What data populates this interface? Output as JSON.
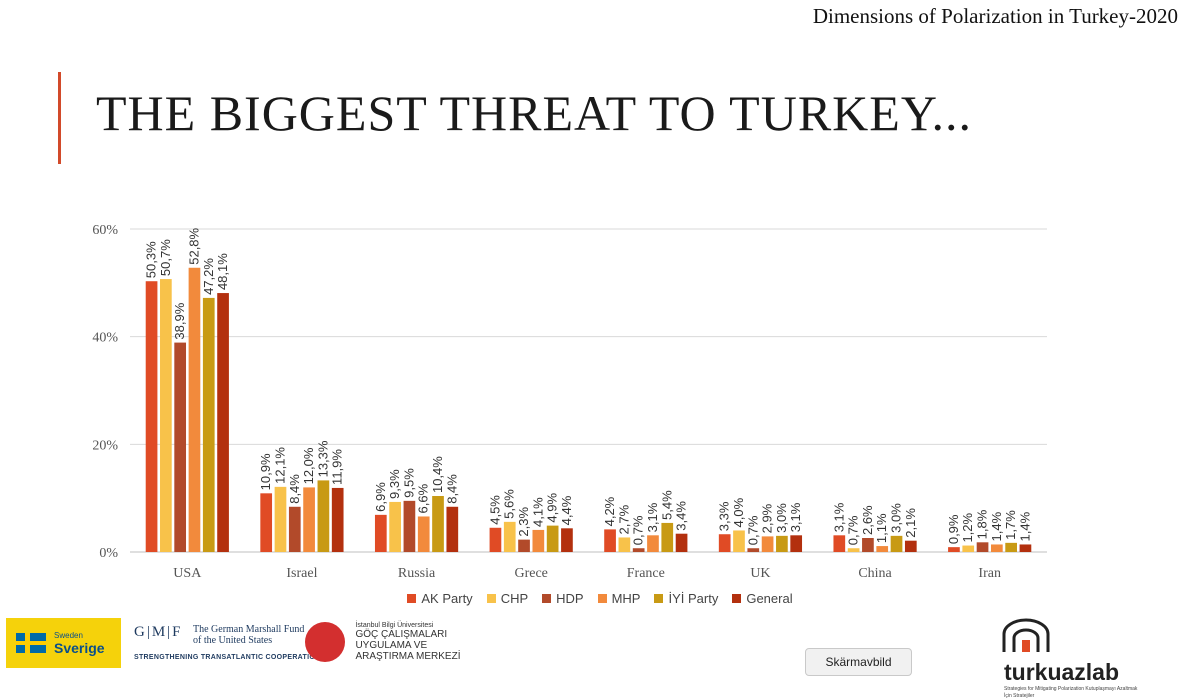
{
  "header": {
    "title": "Dimensions of Polarization in Turkey-2020"
  },
  "slide": {
    "title": "THE BIGGEST THREAT TO TURKEY..."
  },
  "colors": {
    "AK Party": "#e04b25",
    "CHP": "#f8c24a",
    "HDP": "#b24a2a",
    "MHP": "#f28a3c",
    "IYI": "#c89a14",
    "General": "#b3300e",
    "accent": "#d24a2a"
  },
  "chart_data": {
    "type": "bar",
    "title": "",
    "categories": [
      "USA",
      "Israel",
      "Russia",
      "Grece",
      "France",
      "UK",
      "China",
      "Iran"
    ],
    "series": [
      {
        "name": "AK Party",
        "values": [
          50.3,
          10.9,
          6.9,
          4.5,
          4.2,
          3.3,
          3.1,
          0.9
        ],
        "labels": [
          "50,3%",
          "10,9%",
          "6,9%",
          "4,5%",
          "4,2%",
          "3,3%",
          "3,1%",
          "0,9%"
        ]
      },
      {
        "name": "CHP",
        "values": [
          50.7,
          12.1,
          9.3,
          5.6,
          2.7,
          4.0,
          0.7,
          1.2
        ],
        "labels": [
          "50,7%",
          "12,1%",
          "9,3%",
          "5,6%",
          "2,7%",
          "4,0%",
          "0,7%",
          "1,2%"
        ]
      },
      {
        "name": "HDP",
        "values": [
          38.9,
          8.4,
          9.5,
          2.3,
          0.7,
          0.7,
          2.6,
          1.8
        ],
        "labels": [
          "38,9%",
          "8,4%",
          "9,5%",
          "2,3%",
          "0,7%",
          "0,7%",
          "2,6%",
          "1,8%"
        ]
      },
      {
        "name": "MHP",
        "values": [
          52.8,
          12.0,
          6.6,
          4.1,
          3.1,
          2.9,
          1.1,
          1.4
        ],
        "labels": [
          "52,8%",
          "12,0%",
          "6,6%",
          "4,1%",
          "3,1%",
          "2,9%",
          "1,1%",
          "1,4%"
        ]
      },
      {
        "name": "İYİ Party",
        "values": [
          47.2,
          13.3,
          10.4,
          4.9,
          5.4,
          3.0,
          3.0,
          1.7
        ],
        "labels": [
          "47,2%",
          "13,3%",
          "10,4%",
          "4,9%",
          "5,4%",
          "3,0%",
          "3,0%",
          "1,7%"
        ]
      },
      {
        "name": "General",
        "values": [
          48.1,
          11.9,
          8.4,
          4.4,
          3.4,
          3.1,
          2.1,
          1.4
        ],
        "labels": [
          "48,1%",
          "11,9%",
          "8,4%",
          "4,4%",
          "3,4%",
          "3,1%",
          "2,1%",
          "1,4%"
        ]
      }
    ],
    "yticks": [
      0,
      20,
      40,
      60
    ],
    "ytick_labels": [
      "0%",
      "20%",
      "40%",
      "60%"
    ],
    "ylim": [
      0,
      60
    ],
    "xlabel": "",
    "ylabel": "",
    "grid": true,
    "legend_position": "bottom"
  },
  "footer": {
    "sweden_small": "Sweden",
    "sweden_big": "Sverige",
    "gmf_mark": "G|M|F",
    "gmf_name": "The German Marshall Fund of the United States",
    "gmf_tagline": "STRENGTHENING TRANSATLANTIC COOPERATION",
    "bilgi_university": "İstanbul Bilgi Üniversitesi",
    "bilgi_name": "GÖÇ ÇALIŞMALARI UYGULAMA VE ARAŞTIRMA MERKEZİ",
    "turkuaz_name": "turkuazlab",
    "turkuaz_tagline": "Strategies for Mitigating Polarization Kutuplaşmayı Azaltmak İçin Stratejiler"
  },
  "snapshot_button": {
    "label": "Skärmavbild"
  }
}
